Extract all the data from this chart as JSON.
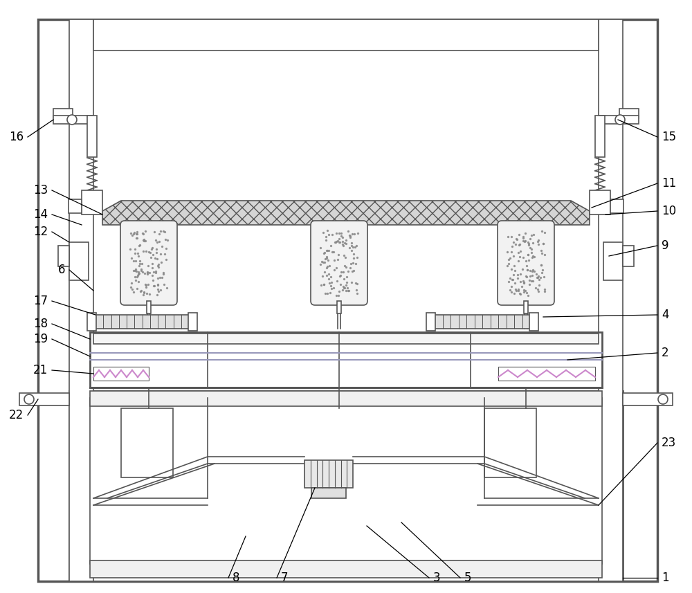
{
  "bg_color": "#ffffff",
  "lc": "#555555",
  "lc2": "#777777",
  "gray_light": "#f0f0f0",
  "gray_med": "#d8d8d8",
  "gray_dark": "#aaaaaa",
  "purple_tint": "#c8b8c8"
}
